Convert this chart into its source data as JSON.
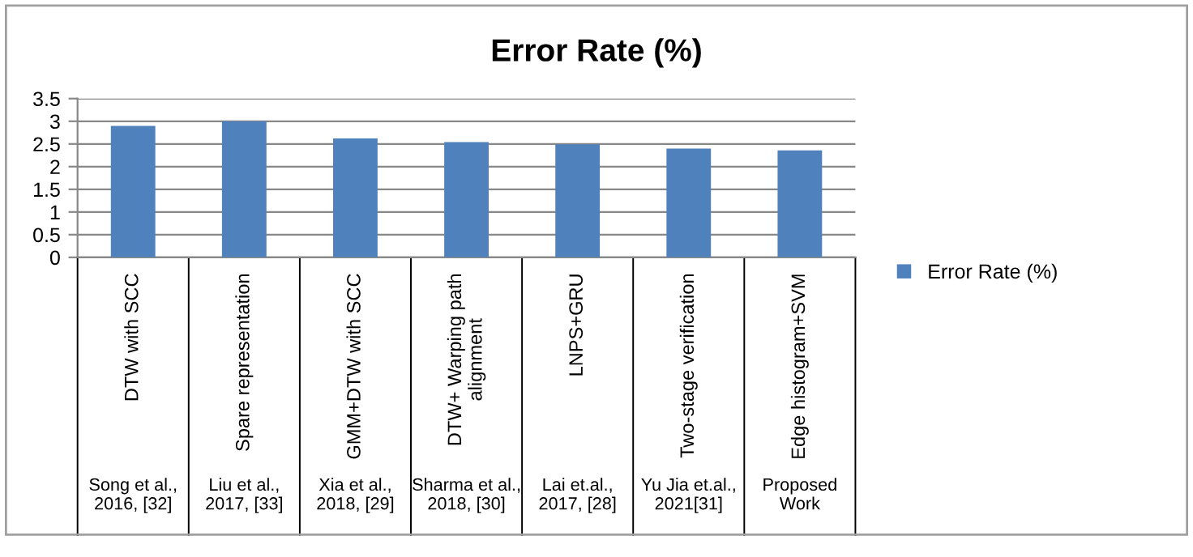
{
  "chart_data": {
    "type": "bar",
    "title": "Error Rate (%)",
    "categories": [
      "DTW with SCC\n\nSong et al.,\n2016, [32]",
      "Spare representation\n\nLiu et al.,\n2017, [33]",
      "GMM+DTW with SCC\n\nXia et al.,\n2018, [29]",
      "DTW+ Warping path\nalignment\n\nSharma et al.,\n2018, [30]",
      "LNPS+GRU\n\nLai et.al.,\n2017, [28]",
      "Two-stage verification\n\nYu Jia et.al.,\n2021[31]",
      "Edge histogram+SVM\n\nProposed\nWork"
    ],
    "series": [
      {
        "name": "Error Rate (%)",
        "color": "#4f81bd",
        "values": [
          2.9,
          3.0,
          2.62,
          2.54,
          2.49,
          2.4,
          2.36
        ]
      }
    ],
    "ylim": [
      0,
      3.5
    ],
    "yticks": [
      0,
      0.5,
      1,
      1.5,
      2,
      2.5,
      3,
      3.5
    ],
    "grid": "y",
    "legend": "right"
  }
}
